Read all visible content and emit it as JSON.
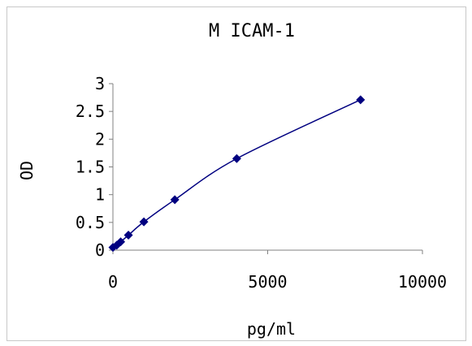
{
  "chart_data": {
    "type": "scatter",
    "title": "M ICAM-1",
    "xlabel": "pg/ml",
    "ylabel": "OD",
    "xlim": [
      0,
      10000
    ],
    "ylim": [
      0,
      3
    ],
    "x_ticks": [
      0,
      5000,
      10000
    ],
    "x_tick_labels": [
      "0",
      "5000",
      "10000"
    ],
    "y_ticks": [
      0,
      0.5,
      1,
      1.5,
      2,
      2.5,
      3
    ],
    "y_tick_labels": [
      "0",
      "0.5",
      "1",
      "1.5",
      "2",
      "2.5",
      "3"
    ],
    "grid": false,
    "legend": "none",
    "series": [
      {
        "color": "#000080",
        "marker": "diamond",
        "line": "smoothed",
        "points": [
          {
            "x": 0,
            "y": 0.05
          },
          {
            "x": 125,
            "y": 0.09
          },
          {
            "x": 250,
            "y": 0.15
          },
          {
            "x": 500,
            "y": 0.27
          },
          {
            "x": 1000,
            "y": 0.51
          },
          {
            "x": 2000,
            "y": 0.91
          },
          {
            "x": 4000,
            "y": 1.65
          },
          {
            "x": 8000,
            "y": 2.71
          }
        ]
      }
    ]
  }
}
